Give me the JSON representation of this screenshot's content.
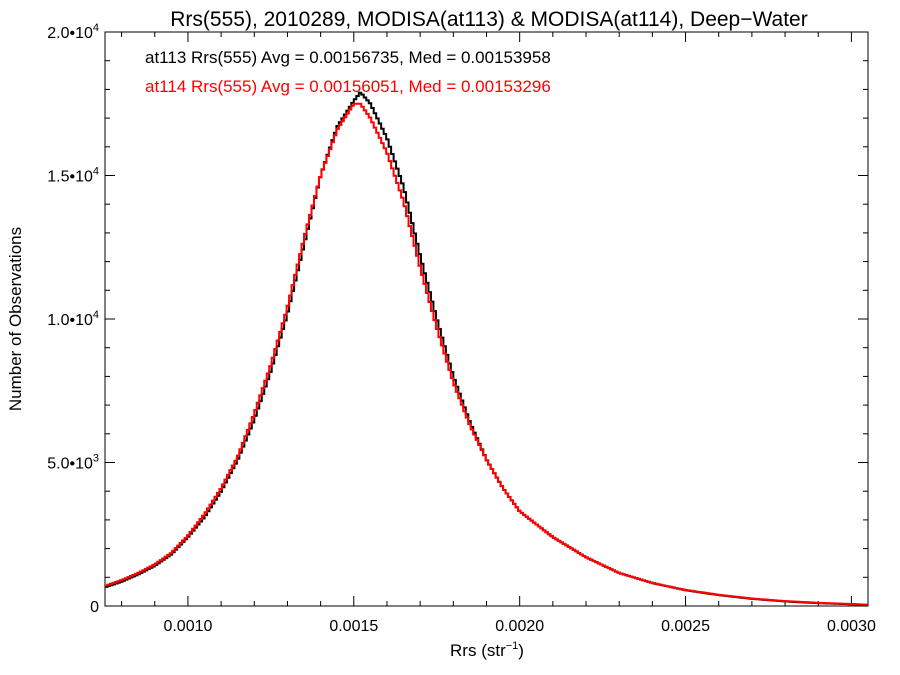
{
  "chart_data": {
    "type": "line",
    "title": "Rrs(555), 2010289, MODISA(at113) & MODISA(at114), Deep−Water",
    "xlabel": {
      "base": "Rrs (str",
      "sup": "−1",
      "tail": ")"
    },
    "ylabel": "Number of Observations",
    "xlim": [
      0.00075,
      0.00305
    ],
    "ylim": [
      0,
      20000
    ],
    "x_ticks": [
      {
        "value": 0.001,
        "label": "0.0010"
      },
      {
        "value": 0.0015,
        "label": "0.0015"
      },
      {
        "value": 0.002,
        "label": "0.0020"
      },
      {
        "value": 0.0025,
        "label": "0.0025"
      },
      {
        "value": 0.003,
        "label": "0.0030"
      }
    ],
    "y_ticks": [
      {
        "value": 0,
        "base": "0",
        "exp": ""
      },
      {
        "value": 5000,
        "base": "5.0•10",
        "exp": "3"
      },
      {
        "value": 10000,
        "base": "1.0•10",
        "exp": "4"
      },
      {
        "value": 15000,
        "base": "1.5•10",
        "exp": "4"
      },
      {
        "value": 20000,
        "base": "2.0•10",
        "exp": "4"
      }
    ],
    "annotations": [
      {
        "text": "at113 Rrs(555) Avg = 0.00156735, Med = 0.00153958",
        "color": "#000000"
      },
      {
        "text": "at114 Rrs(555) Avg = 0.00156051, Med = 0.00153296",
        "color": "#ff0000"
      }
    ],
    "series": [
      {
        "color": "#000000",
        "x": [
          0.00075,
          0.0008,
          0.00085,
          0.0009,
          0.00095,
          0.001,
          0.00105,
          0.0011,
          0.00115,
          0.0012,
          0.00125,
          0.0013,
          0.00135,
          0.0014,
          0.00145,
          0.0015,
          0.00152,
          0.00155,
          0.0016,
          0.00165,
          0.0017,
          0.00175,
          0.0018,
          0.00185,
          0.0019,
          0.00195,
          0.002,
          0.0021,
          0.0022,
          0.0023,
          0.0024,
          0.0025,
          0.0026,
          0.0027,
          0.0028,
          0.0029,
          0.003,
          0.00305
        ],
        "y": [
          650,
          850,
          1100,
          1400,
          1800,
          2400,
          3100,
          4000,
          5100,
          6500,
          8200,
          10200,
          12600,
          15000,
          16700,
          17600,
          17900,
          17500,
          16300,
          14600,
          12200,
          10000,
          8000,
          6400,
          5100,
          4100,
          3300,
          2400,
          1700,
          1150,
          800,
          550,
          380,
          250,
          160,
          100,
          60,
          40
        ]
      },
      {
        "color": "#ff0000",
        "x": [
          0.00075,
          0.0008,
          0.00085,
          0.0009,
          0.00095,
          0.001,
          0.00105,
          0.0011,
          0.00115,
          0.0012,
          0.00125,
          0.0013,
          0.00135,
          0.0014,
          0.00145,
          0.0015,
          0.00152,
          0.00155,
          0.0016,
          0.00165,
          0.0017,
          0.00175,
          0.0018,
          0.00185,
          0.0019,
          0.00195,
          0.002,
          0.0021,
          0.0022,
          0.0023,
          0.0024,
          0.0025,
          0.0026,
          0.0027,
          0.0028,
          0.0029,
          0.003,
          0.00305
        ],
        "y": [
          700,
          900,
          1150,
          1450,
          1850,
          2450,
          3200,
          4100,
          5200,
          6700,
          8400,
          10400,
          12800,
          15000,
          16600,
          17500,
          17500,
          17000,
          15800,
          14100,
          11800,
          9700,
          7800,
          6300,
          5100,
          4100,
          3300,
          2400,
          1700,
          1150,
          800,
          560,
          390,
          260,
          170,
          110,
          70,
          45
        ]
      }
    ]
  }
}
